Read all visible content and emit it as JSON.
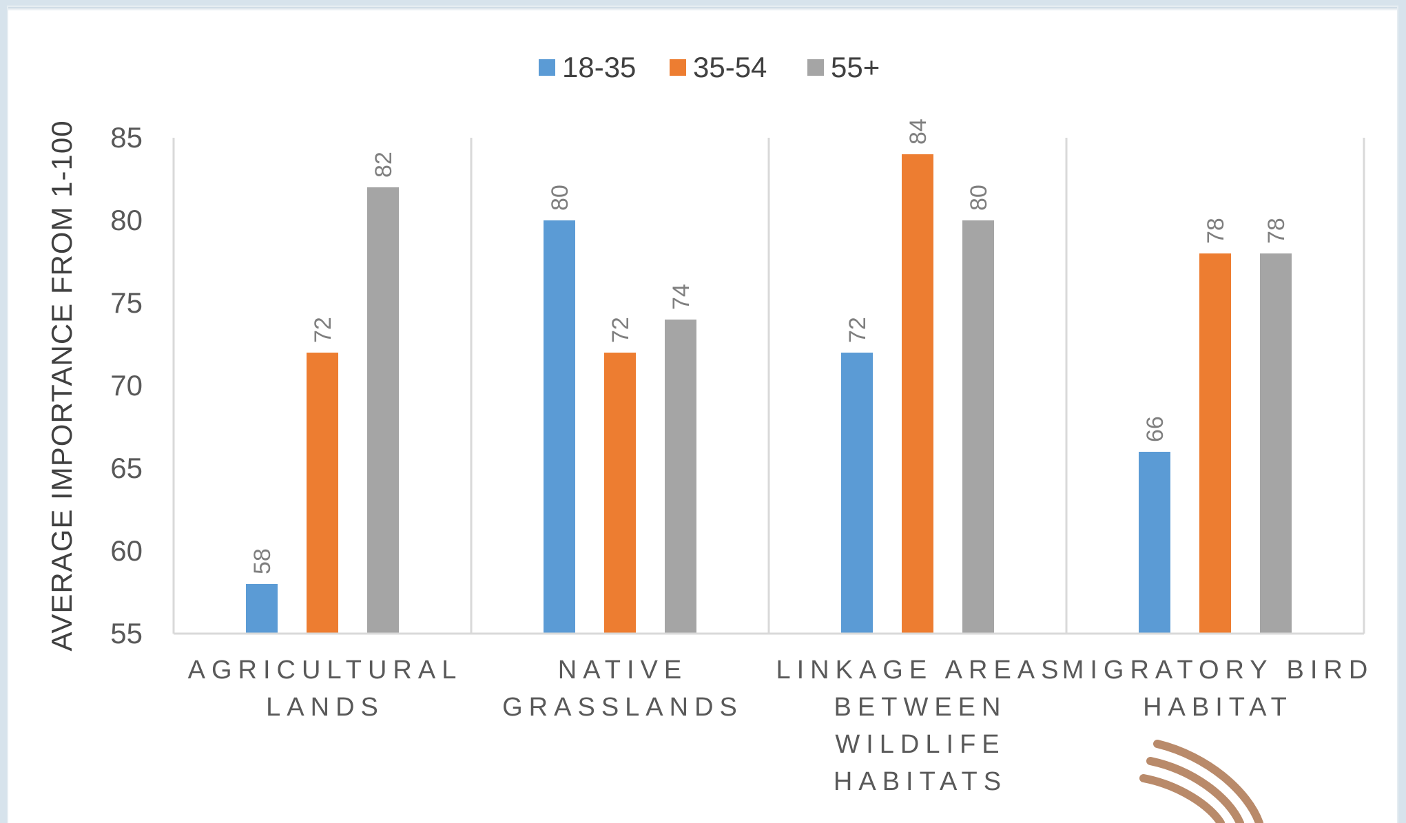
{
  "chart_data": {
    "type": "bar",
    "title": "",
    "xlabel": "",
    "ylabel": "AVERAGE IMPORTANCE FROM 1-100",
    "ylim": [
      55,
      85
    ],
    "yticks": [
      "55",
      "60",
      "65",
      "70",
      "75",
      "80",
      "85"
    ],
    "grid": false,
    "legend": "top-center",
    "categories": [
      [
        "AGRICULTURAL",
        "LANDS"
      ],
      [
        "NATIVE",
        "GRASSLANDS"
      ],
      [
        "LINKAGE AREAS",
        "BETWEEN",
        "WILDLIFE",
        "HABITATS"
      ],
      [
        "MIGRATORY BIRD",
        "HABITAT"
      ]
    ],
    "series": [
      {
        "name": "18-35",
        "color": "#5b9bd5",
        "values": [
          58,
          80,
          72,
          66
        ]
      },
      {
        "name": "35-54",
        "color": "#ed7d31",
        "values": [
          72,
          72,
          84,
          78
        ]
      },
      {
        "name": "55+",
        "color": "#a5a5a5",
        "values": [
          82,
          74,
          80,
          78
        ]
      }
    ],
    "data_labels": true,
    "data_label_rotation": "vertical"
  }
}
